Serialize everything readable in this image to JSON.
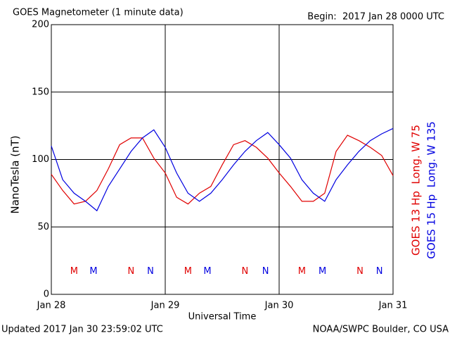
{
  "chart_data": {
    "type": "line",
    "title": "GOES Magnetometer (1 minute data)",
    "subtitle": "Begin:  2017 Jan 28 0000 UTC",
    "x_label": "Universal Time",
    "y_label": "NanoTesla (nT)",
    "footer_left": "Updated 2017 Jan 30 23:59:02 UTC",
    "footer_right": "NOAA/SWPC Boulder, CO USA",
    "x": [
      0,
      0.1,
      0.2,
      0.3,
      0.4,
      0.5,
      0.6,
      0.7,
      0.8,
      0.9,
      1.0,
      1.1,
      1.2,
      1.3,
      1.4,
      1.5,
      1.6,
      1.7,
      1.8,
      1.9,
      2.0,
      2.1,
      2.2,
      2.3,
      2.4,
      2.5,
      2.6,
      2.7,
      2.8,
      2.9,
      3.0
    ],
    "series": [
      {
        "name": "GOES 13 Hp  Long. W 75",
        "color": "#e00000",
        "values": [
          89,
          77,
          67,
          69,
          77,
          93,
          111,
          116,
          116,
          101,
          90,
          72,
          67,
          75,
          80,
          96,
          111,
          114,
          109,
          101,
          90,
          80,
          69,
          69,
          75,
          106,
          118,
          114,
          109,
          103,
          88
        ]
      },
      {
        "name": "GOES 15 Hp  Long. W 135",
        "color": "#0000e0",
        "values": [
          110,
          85,
          75,
          69,
          62,
          80,
          93,
          106,
          116,
          122,
          109,
          90,
          75,
          69,
          75,
          85,
          96,
          106,
          114,
          120,
          111,
          101,
          85,
          75,
          69,
          85,
          96,
          106,
          114,
          119,
          123
        ]
      }
    ],
    "markers": [
      {
        "label": "M",
        "x": 0.2,
        "color": "#e00000"
      },
      {
        "label": "M",
        "x": 0.37,
        "color": "#0000e0"
      },
      {
        "label": "N",
        "x": 0.7,
        "color": "#e00000"
      },
      {
        "label": "N",
        "x": 0.87,
        "color": "#0000e0"
      },
      {
        "label": "M",
        "x": 1.2,
        "color": "#e00000"
      },
      {
        "label": "M",
        "x": 1.37,
        "color": "#0000e0"
      },
      {
        "label": "N",
        "x": 1.7,
        "color": "#e00000"
      },
      {
        "label": "N",
        "x": 1.88,
        "color": "#0000e0"
      },
      {
        "label": "M",
        "x": 2.2,
        "color": "#e00000"
      },
      {
        "label": "M",
        "x": 2.38,
        "color": "#0000e0"
      },
      {
        "label": "N",
        "x": 2.71,
        "color": "#e00000"
      },
      {
        "label": "N",
        "x": 2.88,
        "color": "#0000e0"
      }
    ],
    "marker_level": 17,
    "xlim": [
      0,
      3
    ],
    "xticks": [
      {
        "value": 0,
        "label": "Jan 28"
      },
      {
        "value": 1,
        "label": "Jan 29"
      },
      {
        "value": 2,
        "label": "Jan 30"
      },
      {
        "value": 3,
        "label": "Jan 31"
      }
    ],
    "ylim": [
      0,
      200
    ],
    "yticks": [
      0,
      50,
      100,
      150,
      200
    ],
    "grid": true
  }
}
